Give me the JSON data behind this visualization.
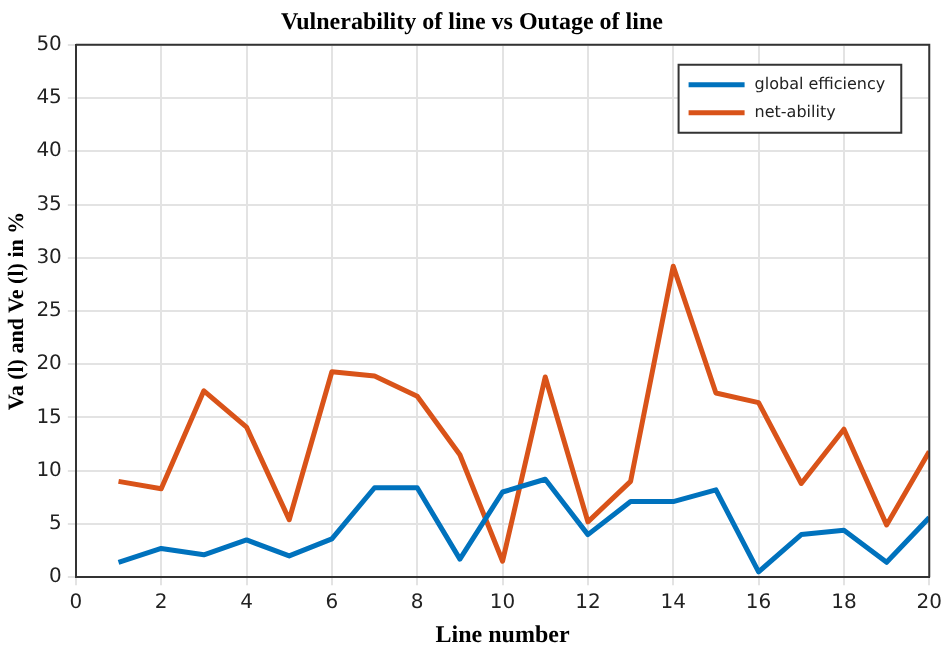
{
  "chart_data": {
    "type": "line",
    "title": "Vulnerability of line vs Outage of line",
    "xlabel": "Line number",
    "ylabel": "Va (l) and Ve (l) in %",
    "x": [
      1,
      2,
      3,
      4,
      5,
      6,
      7,
      8,
      9,
      10,
      11,
      12,
      13,
      14,
      15,
      16,
      17,
      18,
      19,
      20
    ],
    "series": [
      {
        "name": "global efficiency",
        "color": "#0072bd",
        "values": [
          1.4,
          2.7,
          2.1,
          3.5,
          2.0,
          3.6,
          8.4,
          8.4,
          1.7,
          8.0,
          9.2,
          4.0,
          7.1,
          7.1,
          8.2,
          0.5,
          4.0,
          4.4,
          1.4,
          5.6
        ]
      },
      {
        "name": "net-ability",
        "color": "#d95319",
        "values": [
          9.0,
          8.3,
          17.5,
          14.1,
          5.4,
          19.3,
          18.9,
          17.0,
          11.5,
          1.5,
          18.8,
          5.2,
          9.0,
          29.2,
          17.3,
          16.4,
          8.8,
          13.9,
          4.9,
          11.8
        ]
      }
    ],
    "xlim": [
      0,
      20
    ],
    "xticks": [
      0,
      2,
      4,
      6,
      8,
      10,
      12,
      14,
      16,
      18,
      20
    ],
    "ylim": [
      0,
      50
    ],
    "yticks": [
      0,
      5,
      10,
      15,
      20,
      25,
      30,
      35,
      40,
      45,
      50
    ],
    "grid": true,
    "legend": "top right",
    "marker": "none",
    "line_style": "solid"
  }
}
